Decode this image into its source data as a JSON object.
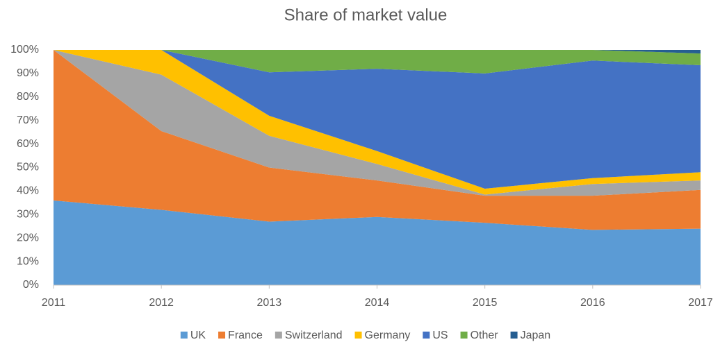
{
  "chart_data": {
    "type": "stacked-area",
    "title": "Share of market value",
    "x": [
      2011,
      2012,
      2013,
      2014,
      2015,
      2016,
      2017
    ],
    "xlim": [
      2011,
      2017
    ],
    "xticks": [
      2011,
      2012,
      2013,
      2014,
      2015,
      2016,
      2017
    ],
    "ylim": [
      0,
      100
    ],
    "yticks": [
      {
        "value": 0,
        "label": "0%"
      },
      {
        "value": 10,
        "label": "10%"
      },
      {
        "value": 20,
        "label": "20%"
      },
      {
        "value": 30,
        "label": "30%"
      },
      {
        "value": 40,
        "label": "40%"
      },
      {
        "value": 50,
        "label": "50%"
      },
      {
        "value": 60,
        "label": "60%"
      },
      {
        "value": 70,
        "label": "70%"
      },
      {
        "value": 80,
        "label": "80%"
      },
      {
        "value": 90,
        "label": "90%"
      },
      {
        "value": 100,
        "label": "100%"
      }
    ],
    "legend": "bottom",
    "series": [
      {
        "name": "UK",
        "color": "#5b9bd5",
        "values": [
          36,
          32,
          27,
          29,
          26.5,
          23.5,
          24
        ]
      },
      {
        "name": "France",
        "color": "#ed7d31",
        "values": [
          64,
          33.5,
          23,
          15.5,
          11.5,
          14.5,
          16.5
        ]
      },
      {
        "name": "Switzerland",
        "color": "#a5a5a5",
        "values": [
          0,
          24,
          13.5,
          7,
          0.5,
          5,
          4
        ]
      },
      {
        "name": "Germany",
        "color": "#ffc000",
        "values": [
          0,
          10.5,
          8.5,
          5.5,
          2.5,
          2.5,
          3.5
        ]
      },
      {
        "name": "US",
        "color": "#4472c4",
        "values": [
          0,
          0,
          18.5,
          35,
          49,
          50,
          45.5
        ]
      },
      {
        "name": "Other",
        "color": "#70ad47",
        "values": [
          0,
          0,
          9.5,
          8,
          10,
          4.5,
          5
        ]
      },
      {
        "name": "Japan",
        "color": "#255e91",
        "values": [
          0,
          0,
          0,
          0,
          0,
          0,
          1.5
        ]
      }
    ]
  }
}
